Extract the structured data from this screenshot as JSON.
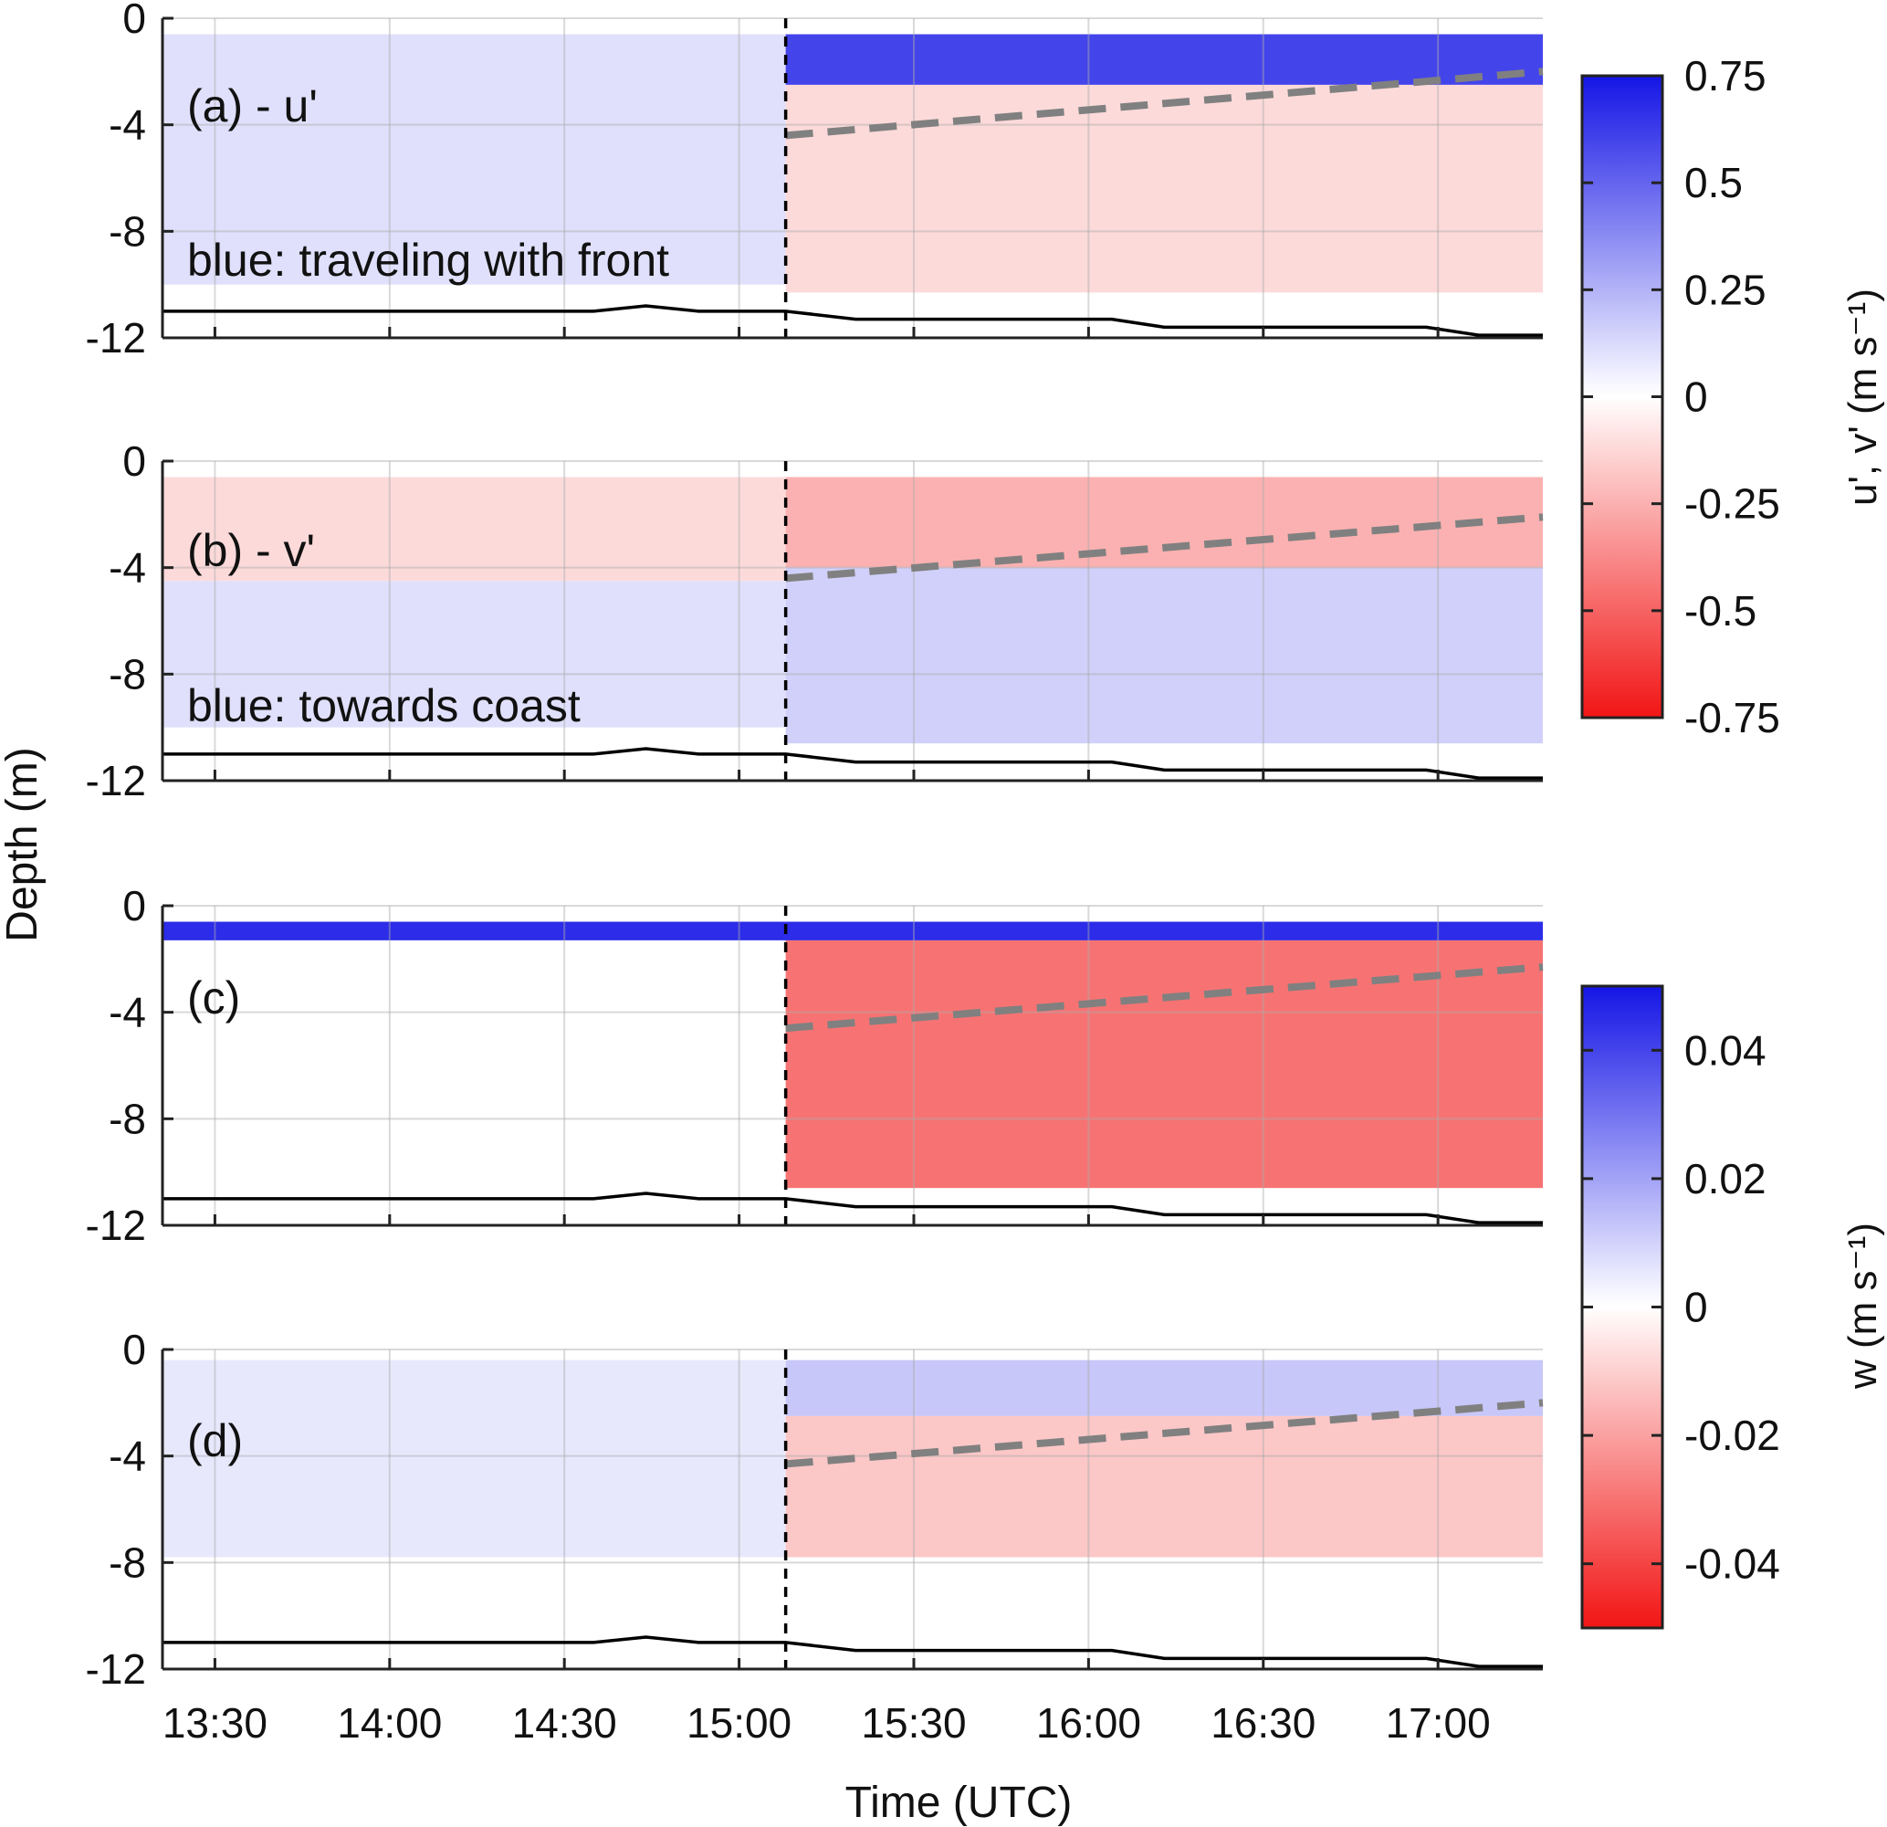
{
  "figure": {
    "ylabel": "Depth (m)",
    "xlabel": "Time (UTC)",
    "x_tick_labels": [
      "13:30",
      "14:00",
      "14:30",
      "15:00",
      "15:30",
      "16:00",
      "16:30",
      "17:00"
    ],
    "y_tick_labels": [
      "0",
      "-4",
      "-8",
      "-12"
    ]
  },
  "colors": {
    "positive_blue": "#1515e6",
    "negative_red": "#f21515",
    "zero_white": "#ffffff",
    "front_marker": "#000000",
    "interface_dashed": "#808080",
    "bottom_line": "#000000"
  },
  "colorbars": [
    {
      "label": "u', v' (m s⁻¹)",
      "ticks": [
        0.75,
        0.5,
        0.25,
        0,
        -0.25,
        -0.5,
        -0.75
      ],
      "tick_labels": [
        "0.75",
        "0.5",
        "0.25",
        "0",
        "-0.25",
        "-0.5",
        "-0.75"
      ],
      "range": [
        -0.75,
        0.75
      ]
    },
    {
      "label": "w (m s⁻¹)",
      "ticks": [
        0.04,
        0.02,
        0,
        -0.02,
        -0.04
      ],
      "tick_labels": [
        "0.04",
        "0.02",
        "0",
        "-0.02",
        "-0.04"
      ],
      "range": [
        -0.05,
        0.05
      ]
    }
  ],
  "chart_data": [
    {
      "type": "heatmap",
      "panel_label": "(a) - u'",
      "annotation": "blue: traveling with front",
      "variable": "u'",
      "colorbar": 0,
      "xlim": [
        "13:21",
        "17:18"
      ],
      "ylim": [
        -12,
        0
      ],
      "yticks": [
        0,
        -4,
        -8,
        -12
      ],
      "grid": true,
      "front_time": "15:08",
      "data_depth_range": [
        -10,
        -0.6
      ],
      "interface_dashed_line": {
        "x": [
          "15:08",
          "17:18"
        ],
        "y": [
          -4.4,
          -2.0
        ]
      },
      "bottom_depth_line": {
        "x": [
          "13:21",
          "14:35",
          "14:44",
          "14:53",
          "15:08",
          "15:20",
          "16:04",
          "16:13",
          "16:58",
          "17:07",
          "17:18"
        ],
        "y": [
          -11.0,
          -11.0,
          -10.8,
          -11.0,
          -11.0,
          -11.3,
          -11.3,
          -11.6,
          -11.6,
          -11.9,
          -11.9
        ]
      },
      "field_summary": [
        {
          "x": [
            "13:21",
            "15:08"
          ],
          "y": [
            -10,
            -0.6
          ],
          "value": 0.1
        },
        {
          "x": [
            "15:08",
            "17:18"
          ],
          "y": [
            -2.5,
            -0.6
          ],
          "value": 0.6
        },
        {
          "x": [
            "15:08",
            "17:18"
          ],
          "y": [
            -10.3,
            -2.5
          ],
          "value": -0.12
        }
      ]
    },
    {
      "type": "heatmap",
      "panel_label": "(b) - v'",
      "annotation": "blue: towards coast",
      "variable": "v'",
      "colorbar": 0,
      "xlim": [
        "13:21",
        "17:18"
      ],
      "ylim": [
        -12,
        0
      ],
      "yticks": [
        0,
        -4,
        -8,
        -12
      ],
      "grid": true,
      "front_time": "15:08",
      "data_depth_range": [
        -10,
        -0.6
      ],
      "interface_dashed_line": {
        "x": [
          "15:08",
          "17:18"
        ],
        "y": [
          -4.4,
          -2.1
        ]
      },
      "bottom_depth_line": {
        "x": [
          "13:21",
          "14:35",
          "14:44",
          "14:53",
          "15:08",
          "15:20",
          "16:04",
          "16:13",
          "16:58",
          "17:07",
          "17:18"
        ],
        "y": [
          -11.0,
          -11.0,
          -10.8,
          -11.0,
          -11.0,
          -11.3,
          -11.3,
          -11.6,
          -11.6,
          -11.9,
          -11.9
        ]
      },
      "field_summary": [
        {
          "x": [
            "13:21",
            "15:08"
          ],
          "y": [
            -4.5,
            -0.6
          ],
          "value": -0.12
        },
        {
          "x": [
            "13:21",
            "15:08"
          ],
          "y": [
            -10,
            -4.5
          ],
          "value": 0.1
        },
        {
          "x": [
            "15:08",
            "17:18"
          ],
          "y": [
            -4.0,
            -0.6
          ],
          "value": -0.25
        },
        {
          "x": [
            "15:08",
            "17:18"
          ],
          "y": [
            -10.6,
            -4.0
          ],
          "value": 0.15
        }
      ]
    },
    {
      "type": "heatmap",
      "panel_label": "(c)",
      "variable": "w",
      "colorbar": 1,
      "xlim": [
        "13:21",
        "17:18"
      ],
      "ylim": [
        -12,
        0
      ],
      "yticks": [
        0,
        -4,
        -8,
        -12
      ],
      "grid": true,
      "front_time": "15:08",
      "data_depth_range": [
        -10,
        -0.6
      ],
      "interface_dashed_line": {
        "x": [
          "15:08",
          "17:18"
        ],
        "y": [
          -4.6,
          -2.3
        ]
      },
      "bottom_depth_line": {
        "x": [
          "13:21",
          "14:35",
          "14:44",
          "14:53",
          "15:08",
          "15:20",
          "16:04",
          "16:13",
          "16:58",
          "17:07",
          "17:18"
        ],
        "y": [
          -11.0,
          -11.0,
          -10.8,
          -11.0,
          -11.0,
          -11.3,
          -11.3,
          -11.6,
          -11.6,
          -11.9,
          -11.9
        ]
      },
      "field_summary": [
        {
          "x": [
            "13:21",
            "17:18"
          ],
          "y": [
            -1.3,
            -0.6
          ],
          "value": 0.045
        },
        {
          "x": [
            "13:21",
            "15:08"
          ],
          "y": [
            -10,
            -1.3
          ],
          "value": 0.0
        },
        {
          "x": [
            "15:08",
            "17:18"
          ],
          "y": [
            -10.6,
            -1.3
          ],
          "value": -0.03
        }
      ]
    },
    {
      "type": "heatmap",
      "panel_label": "(d)",
      "variable": "w",
      "colorbar": 1,
      "xlim": [
        "13:21",
        "17:18"
      ],
      "ylim": [
        -12,
        0
      ],
      "yticks": [
        0,
        -4,
        -8,
        -12
      ],
      "grid": true,
      "front_time": "15:08",
      "data_depth_range": [
        -7.8,
        -0.4
      ],
      "interface_dashed_line": {
        "x": [
          "15:08",
          "17:18"
        ],
        "y": [
          -4.3,
          -2.0
        ]
      },
      "bottom_depth_line": {
        "x": [
          "13:21",
          "14:35",
          "14:44",
          "14:53",
          "15:08",
          "15:20",
          "16:04",
          "16:13",
          "16:58",
          "17:07",
          "17:18"
        ],
        "y": [
          -11.0,
          -11.0,
          -10.8,
          -11.0,
          -11.0,
          -11.3,
          -11.3,
          -11.6,
          -11.6,
          -11.9,
          -11.9
        ]
      },
      "field_summary": [
        {
          "x": [
            "13:21",
            "15:08"
          ],
          "y": [
            -7.8,
            -0.4
          ],
          "value": 0.005
        },
        {
          "x": [
            "15:08",
            "17:18"
          ],
          "y": [
            -2.5,
            -0.4
          ],
          "value": 0.012
        },
        {
          "x": [
            "15:08",
            "17:18"
          ],
          "y": [
            -7.8,
            -2.5
          ],
          "value": -0.012
        }
      ]
    }
  ]
}
